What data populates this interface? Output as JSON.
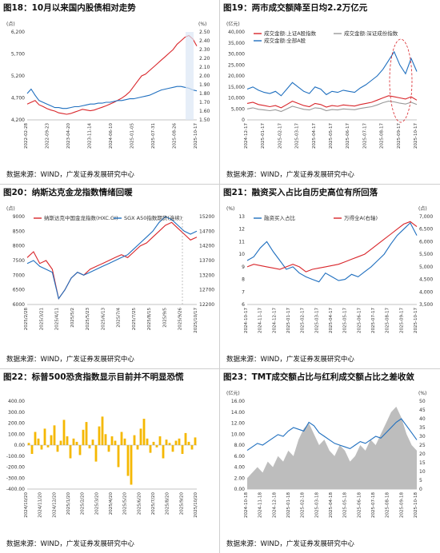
{
  "figures": [
    {
      "caption": "图18：10月以来国内股债相对走势",
      "source": "数据来源：WIND，广发证券发展研究中心",
      "chart_data": {
        "type": "line",
        "left_axis_unit": "(点)",
        "right_axis_unit": "(%)",
        "y_left_ticks": [
          "6,200",
          "5,700",
          "5,200",
          "4,700",
          "4,200"
        ],
        "y_right_ticks": [
          "2.50",
          "2.40",
          "2.30",
          "2.20",
          "2.10",
          "2.00",
          "1.90",
          "1.80",
          "1.70",
          "1.60",
          "1.50"
        ],
        "x_ticks": [
          "2022-02-28",
          "2022-09-23",
          "2023-04-20",
          "2023-11-14",
          "2024-06-10",
          "2025-01-05",
          "2025-07-31",
          "2025-08-26",
          "2025-10-17"
        ],
        "ylim_left": [
          4200,
          6700
        ],
        "ylim_right": [
          1.5,
          2.5
        ],
        "series": [
          {
            "axis": "left",
            "color": "#d9262b",
            "values": [
              4650,
              4700,
              4750,
              4630,
              4580,
              4520,
              4480,
              4450,
              4400,
              4380,
              4360,
              4380,
              4420,
              4460,
              4500,
              4480,
              4460,
              4480,
              4520,
              4560,
              4600,
              4650,
              4700,
              4760,
              4820,
              4900,
              5000,
              5150,
              5300,
              5450,
              5500,
              5600,
              5700,
              5800,
              5900,
              6000,
              6100,
              6200,
              6350,
              6450,
              6550,
              6600,
              6500,
              6300
            ]
          },
          {
            "axis": "right",
            "color": "#1f6fbf",
            "values": [
              1.8,
              1.85,
              1.78,
              1.72,
              1.7,
              1.68,
              1.66,
              1.64,
              1.64,
              1.63,
              1.63,
              1.64,
              1.65,
              1.65,
              1.66,
              1.67,
              1.68,
              1.68,
              1.69,
              1.69,
              1.7,
              1.7,
              1.71,
              1.72,
              1.72,
              1.73,
              1.74,
              1.74,
              1.75,
              1.76,
              1.77,
              1.78,
              1.8,
              1.82,
              1.84,
              1.85,
              1.86,
              1.87,
              1.88,
              1.88,
              1.87,
              1.86,
              1.84,
              1.83
            ]
          }
        ]
      }
    },
    {
      "caption": "图19：两市成交额降至日均2.2万亿元",
      "source": "数据来源：WIND，广发证券发展研究中心",
      "chart_data": {
        "type": "line",
        "left_axis_unit": "(亿元)",
        "y_left_ticks": [
          "40,000",
          "35,000",
          "30,000",
          "25,000",
          "20,000",
          "15,000",
          "10,000",
          "5,000",
          "0"
        ],
        "x_ticks": [
          "2024-12-17",
          "2025-01-17",
          "2025-02-17",
          "2025-03-17",
          "2025-04-17",
          "2025-05-17",
          "2025-06-17",
          "2025-07-17",
          "2025-08-17",
          "2025-09-17",
          "2025-10-17"
        ],
        "ylim": [
          0,
          40000
        ],
        "legend": [
          "成交金额:上证A股指数",
          "成交金额:深证成份指数",
          "成交金额:全部A股"
        ],
        "series": [
          {
            "name": "成交金额:上证A股指数",
            "color": "#d9262b",
            "values": [
              7500,
              8000,
              7000,
              6500,
              6000,
              6500,
              5500,
              7000,
              8500,
              7500,
              6500,
              6000,
              7500,
              7000,
              5800,
              6500,
              6200,
              6800,
              6500,
              6300,
              7000,
              7500,
              8000,
              9000,
              10000,
              11000,
              10500,
              10000,
              9500,
              10500,
              9000
            ]
          },
          {
            "name": "成交金额:深证成份指数",
            "color": "#999999",
            "values": [
              5000,
              5500,
              4800,
              4500,
              4200,
              4600,
              3800,
              5000,
              6200,
              5500,
              4800,
              4500,
              5500,
              5200,
              4200,
              4700,
              4500,
              5000,
              4800,
              4600,
              5200,
              5600,
              6000,
              6800,
              7800,
              8500,
              8200,
              7600,
              7200,
              8000,
              7000
            ]
          },
          {
            "name": "成交金额:全部A股",
            "color": "#1f6fbf",
            "values": [
              14000,
              15000,
              13500,
              12500,
              12000,
              13000,
              11000,
              14000,
              17000,
              15000,
              13000,
              12000,
              15000,
              14000,
              11500,
              13000,
              12500,
              13500,
              13000,
              12500,
              14500,
              16000,
              18000,
              20000,
              23000,
              27000,
              31000,
              25000,
              21000,
              28000,
              22000
            ]
          }
        ]
      }
    },
    {
      "caption": "图20：纳斯达克金龙指数情绪回暖",
      "source": "数据来源：WIND，广发证券发展研究中心",
      "chart_data": {
        "type": "line",
        "left_axis_unit": "(点)",
        "y_left_ticks": [
          "9000",
          "8500",
          "8000",
          "7500",
          "7000",
          "6500",
          "6000"
        ],
        "y_right_ticks": [
          "15200",
          "14700",
          "14200",
          "13700",
          "13200",
          "12700",
          "12200"
        ],
        "x_ticks": [
          "2025/2/28",
          "2025/3/21",
          "2025/4/11",
          "2025/5/2",
          "2025/5/23",
          "2025/6/13",
          "2025/7/4",
          "2025/7/25",
          "2025/8/15",
          "2025/9/5",
          "2025/9/26",
          "2025/10/17"
        ],
        "ylim_left": [
          6000,
          9000
        ],
        "ylim_right": [
          12200,
          15200
        ],
        "legend": [
          "纳斯达克中国金龙指数(HXC.GI)",
          "SGX A50指数期货(连续)"
        ],
        "series": [
          {
            "name": "纳斯达克中国金龙指数(HXC.GI)",
            "color": "#d9262b",
            "axis": "left",
            "values": [
              7600,
              7800,
              7400,
              7500,
              7200,
              6200,
              6500,
              6900,
              7100,
              7000,
              7200,
              7300,
              7400,
              7500,
              7600,
              7700,
              7600,
              7800,
              8000,
              8100,
              8300,
              8500,
              8700,
              8800,
              8600,
              8400,
              8200,
              8300
            ]
          },
          {
            "name": "SGX A50指数期货(连续)",
            "color": "#1f6fbf",
            "axis": "right",
            "values": [
              13600,
              13700,
              13500,
              13400,
              13300,
              12400,
              12700,
              13100,
              13300,
              13200,
              13300,
              13400,
              13500,
              13600,
              13700,
              13800,
              13900,
              14100,
              14300,
              14500,
              14700,
              15000,
              15200,
              15100,
              14900,
              14700,
              14600,
              14700
            ]
          }
        ]
      }
    },
    {
      "caption": "图21：融资买入占比自历史高位有所回落",
      "source": "数据来源：WIND，广发证券发展研究中心",
      "chart_data": {
        "type": "line",
        "left_axis_unit": "(%)",
        "right_axis_unit": "(点)",
        "y_left_ticks": [
          "13",
          "12",
          "11",
          "10",
          "9",
          "8",
          "7",
          "6"
        ],
        "y_right_ticks": [
          "7,000",
          "6,500",
          "6,000",
          "5,500",
          "5,000",
          "4,500",
          "4,000",
          "3,500"
        ],
        "x_ticks": [
          "2024-10-17",
          "2024-11-17",
          "2024-12-17",
          "2025-01-17",
          "2025-02-17",
          "2025-03-17",
          "2025-04-17",
          "2025-05-17",
          "2025-06-17",
          "2025-07-17",
          "2025-08-17",
          "2025-09-17",
          "2025-10-17"
        ],
        "ylim_left": [
          6,
          13
        ],
        "ylim_right": [
          3500,
          7000
        ],
        "legend": [
          "融资买入占比",
          "万得全A(右轴)"
        ],
        "series": [
          {
            "name": "融资买入占比",
            "color": "#1f6fbf",
            "axis": "left",
            "values": [
              9.5,
              9.8,
              10.5,
              11.0,
              10.2,
              9.5,
              8.8,
              9.0,
              8.5,
              8.2,
              8.0,
              7.8,
              8.5,
              8.2,
              7.9,
              8.0,
              8.4,
              8.2,
              8.6,
              9.0,
              9.5,
              10.0,
              10.8,
              11.5,
              12.0,
              12.5,
              11.5
            ]
          },
          {
            "name": "万得全A(右轴)",
            "color": "#d9262b",
            "axis": "right",
            "values": [
              5000,
              5100,
              5050,
              5000,
              4950,
              4900,
              5000,
              5100,
              5000,
              4800,
              4900,
              4950,
              5000,
              5050,
              5100,
              5200,
              5300,
              5400,
              5500,
              5700,
              5900,
              6100,
              6300,
              6500,
              6700,
              6800,
              6600
            ]
          }
        ]
      }
    },
    {
      "caption": "图22：标普500恐贪指数显示目前并不明显恐慌",
      "source": "数据来源：WIND，广发证券发展研究中心",
      "chart_data": {
        "type": "bar",
        "y_ticks": [
          "400.00",
          "300.00",
          "200.00",
          "100.00",
          "0.00",
          "-100.00",
          "-200.00",
          "-300.00",
          "-400.00"
        ],
        "x_ticks": [
          "2024/10/20",
          "2024/11/20",
          "2024/12/20",
          "2025/1/20",
          "2025/2/20",
          "2025/3/20",
          "2025/4/20",
          "2025/5/20",
          "2025/6/20",
          "2025/7/20",
          "2025/8/20",
          "2025/9/20",
          "2025/10/20"
        ],
        "ylim": [
          -400,
          400
        ],
        "color": "#f5b800",
        "values": [
          20,
          -80,
          120,
          60,
          -40,
          150,
          -20,
          90,
          180,
          -60,
          40,
          230,
          80,
          -120,
          60,
          30,
          -90,
          140,
          210,
          -30,
          50,
          -150,
          170,
          260,
          100,
          -60,
          80,
          40,
          -200,
          120,
          60,
          -280,
          -360,
          90,
          -40,
          150,
          240,
          60,
          -70,
          30,
          -20,
          80,
          -120,
          50,
          20,
          -60,
          40,
          60,
          -80,
          110,
          30,
          -40,
          70
        ]
      }
    },
    {
      "caption": "图23：TMT成交额占比与红利成交额占比之差收敛",
      "source": "数据来源：WIND，广发证券发展研究中心",
      "chart_data": {
        "type": "area",
        "left_axis_unit": "(亿元)",
        "right_axis_unit": "(%)",
        "y_left_ticks": [
          "16.00",
          "14.00",
          "12.00",
          "10.00",
          "8.00",
          "6.00",
          "4.00",
          "2.00",
          "0.00"
        ],
        "y_right_ticks": [
          "50",
          "45",
          "40",
          "35",
          "30",
          "25",
          "20",
          "15",
          "10",
          "5",
          "0"
        ],
        "x_ticks": [
          "2024-10-18",
          "2024-11-18",
          "2024-12-18",
          "2025-01-18",
          "2025-02-18",
          "2025-03-18",
          "2025-04-18",
          "2025-05-18",
          "2025-06-18",
          "2025-07-18",
          "2025-08-18",
          "2025-09-18",
          "2025-10-18"
        ],
        "ylim_left": [
          0,
          16
        ],
        "ylim_right": [
          0,
          50
        ],
        "series": [
          {
            "color": "#bdbdbd",
            "axis": "left",
            "values": [
              2,
              3,
              4,
              3,
              5,
              4,
              6,
              5,
              7,
              6,
              9,
              11,
              12,
              10,
              8,
              9,
              7,
              6,
              8,
              7,
              5,
              6,
              8,
              7,
              9,
              8,
              10,
              12,
              14,
              15,
              13,
              10,
              8,
              7
            ]
          },
          {
            "color": "#1f6fbf",
            "axis": "right",
            "values": [
              22,
              24,
              26,
              25,
              27,
              29,
              31,
              30,
              33,
              35,
              34,
              33,
              38,
              36,
              32,
              30,
              28,
              26,
              25,
              24,
              23,
              25,
              27,
              26,
              28,
              30,
              29,
              32,
              35,
              38,
              40,
              36,
              32,
              28
            ]
          }
        ]
      }
    }
  ]
}
